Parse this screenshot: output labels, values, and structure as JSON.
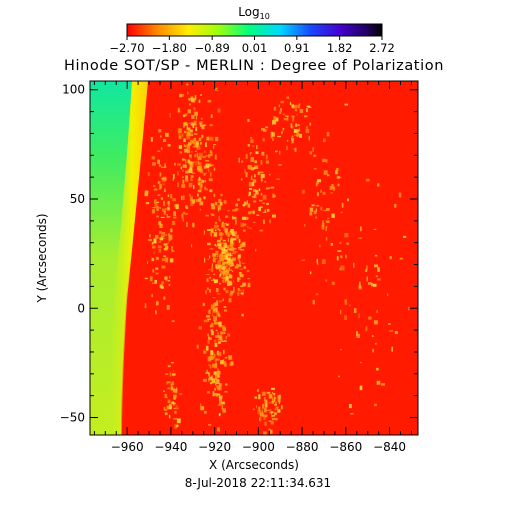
{
  "chart_data": {
    "type": "heatmap",
    "title": "Hinode SOT/SP - MERLIN : Degree of Polarization",
    "xlabel": "X (Arcseconds)",
    "ylabel": "Y (Arcseconds)",
    "timestamp": "8-Jul-2018 22:11:34.631",
    "xlim": [
      -977,
      -827
    ],
    "ylim": [
      -58,
      104
    ],
    "x_ticks": [
      -960,
      -940,
      -920,
      -900,
      -880,
      -860,
      -840
    ],
    "y_ticks": [
      100,
      50,
      0,
      -50
    ],
    "colorbar": {
      "label": "Log",
      "label_sub": "10",
      "min": -2.7,
      "max": 2.72,
      "tick_labels": [
        "-2.70",
        "-1.80",
        "-0.89",
        "0.01",
        "0.91",
        "1.82",
        "2.72"
      ],
      "tick_values": [
        -2.7,
        -1.8,
        -0.89,
        0.01,
        0.91,
        1.82,
        2.72
      ]
    },
    "colors": {
      "disk": "#ff1a00",
      "limb_bright": "#e8f000",
      "off_limb_low": "#b8ee28",
      "off_limb_high": "#10e8a0",
      "plage": "#ffbb20"
    }
  }
}
